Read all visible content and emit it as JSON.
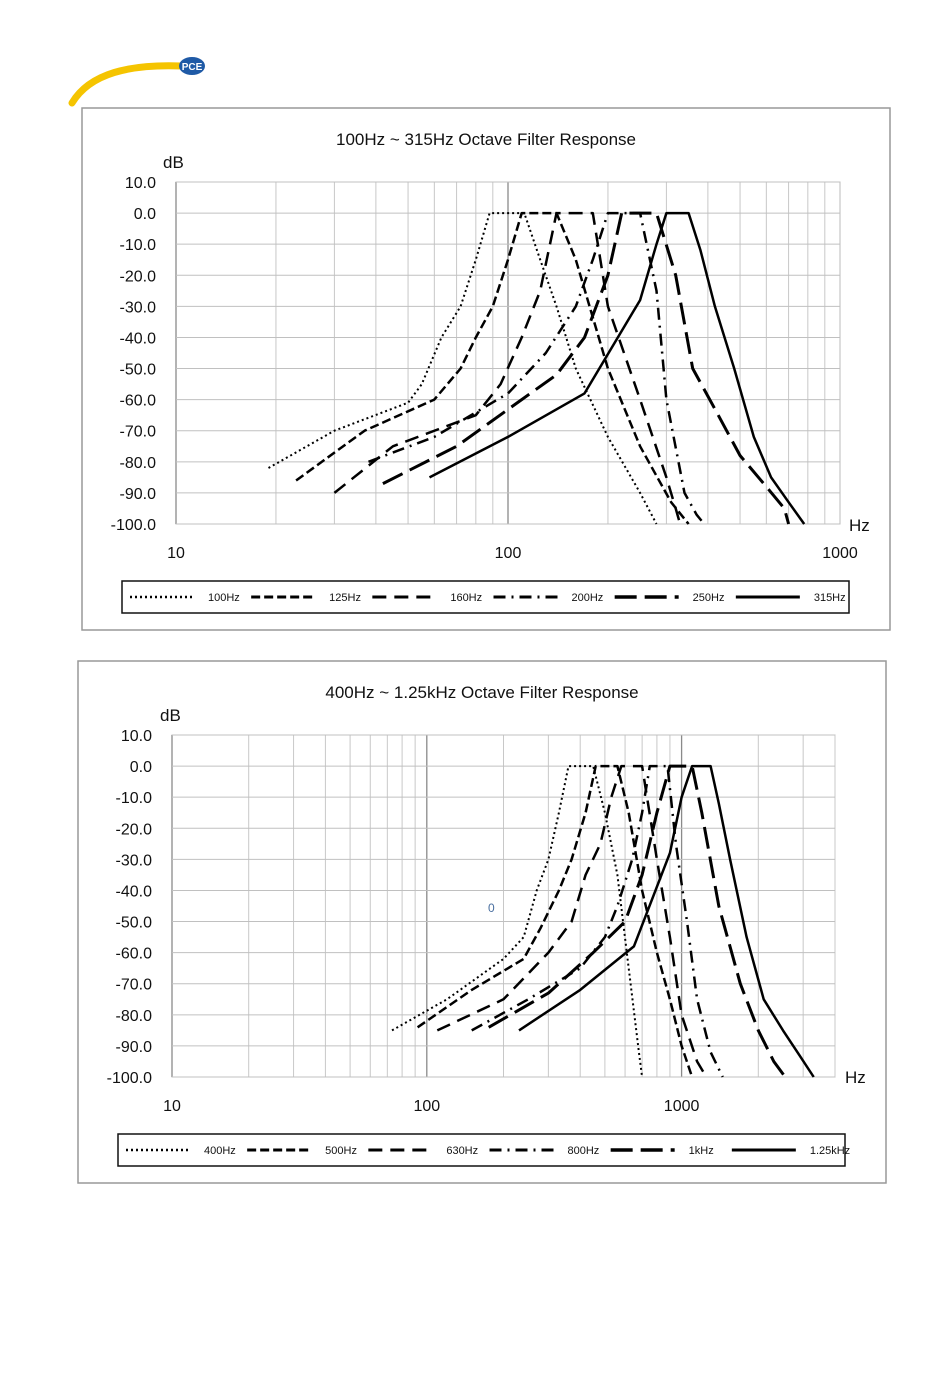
{
  "logo": {
    "text": "PCE",
    "accent": "#f5c400",
    "badge": "#1f5aa6"
  },
  "chart_data": [
    {
      "type": "line",
      "title": "100Hz ~ 315Hz Octave Filter Response",
      "ylabel": "dB",
      "xlabel": "Hz",
      "xscale": "log",
      "xlim": [
        10,
        1000
      ],
      "ylim": [
        -100,
        10
      ],
      "yticks": [
        "10.0",
        "0.0",
        "-10.0",
        "-20.0",
        "-30.0",
        "-40.0",
        "-50.0",
        "-60.0",
        "-70.0",
        "-80.0",
        "-90.0",
        "-100.0"
      ],
      "xticks": [
        "10",
        "100",
        "1000"
      ],
      "grid": true,
      "legend": "bottom",
      "series": [
        {
          "name": "100Hz",
          "dash": "dotted",
          "x": [
            19,
            30,
            50,
            55,
            63,
            72,
            80,
            88,
            100,
            112,
            125,
            140,
            160,
            200,
            250,
            280
          ],
          "y": [
            -82,
            -70,
            -61,
            -55,
            -40,
            -30,
            -15,
            0,
            0,
            0,
            -15,
            -30,
            -50,
            -72,
            -90,
            -100
          ]
        },
        {
          "name": "125Hz",
          "dash": "dash-short",
          "x": [
            23,
            37,
            60,
            72,
            80,
            90,
            100,
            110,
            125,
            140,
            160,
            200,
            250,
            310,
            350
          ],
          "y": [
            -86,
            -70,
            -60,
            -50,
            -40,
            -30,
            -15,
            0,
            0,
            0,
            -15,
            -50,
            -75,
            -93,
            -100
          ]
        },
        {
          "name": "160Hz",
          "dash": "dash-long",
          "x": [
            30,
            45,
            80,
            95,
            110,
            125,
            140,
            160,
            180,
            200,
            250,
            300,
            320,
            330
          ],
          "y": [
            -90,
            -75,
            -65,
            -55,
            -40,
            -25,
            0,
            0,
            0,
            -30,
            -60,
            -85,
            -95,
            -100
          ]
        },
        {
          "name": "200Hz",
          "dash": "dash-dot",
          "x": [
            38,
            60,
            100,
            130,
            160,
            180,
            200,
            220,
            250,
            280,
            300,
            340,
            370,
            390
          ],
          "y": [
            -80,
            -72,
            -58,
            -45,
            -30,
            -15,
            0,
            0,
            0,
            -25,
            -60,
            -90,
            -97,
            -100
          ]
        },
        {
          "name": "250Hz",
          "dash": "dash-xlong",
          "x": [
            42,
            70,
            110,
            140,
            170,
            200,
            220,
            250,
            280,
            320,
            360,
            420,
            500,
            600,
            680,
            700
          ],
          "y": [
            -87,
            -75,
            -60,
            -52,
            -40,
            -20,
            0,
            0,
            0,
            -20,
            -50,
            -63,
            -78,
            -88,
            -95,
            -100
          ]
        },
        {
          "name": "315Hz",
          "dash": "solid",
          "x": [
            58,
            100,
            170,
            250,
            280,
            300,
            320,
            350,
            380,
            420,
            480,
            550,
            620,
            700,
            780
          ],
          "y": [
            -85,
            -72,
            -58,
            -28,
            -10,
            0,
            0,
            0,
            -12,
            -30,
            -50,
            -72,
            -85,
            -93,
            -100
          ]
        }
      ]
    },
    {
      "type": "line",
      "title": "400Hz ~ 1.25kHz Octave Filter Response",
      "ylabel": "dB",
      "xlabel": "Hz",
      "xscale": "log",
      "xlim": [
        10,
        4000
      ],
      "ylim": [
        -100,
        10
      ],
      "yticks": [
        "10.0",
        "0.0",
        "-10.0",
        "-20.0",
        "-30.0",
        "-40.0",
        "-50.0",
        "-60.0",
        "-70.0",
        "-80.0",
        "-90.0",
        "-100.0"
      ],
      "xticks": [
        "10",
        "100",
        "1000"
      ],
      "grid": true,
      "legend": "bottom",
      "annotation": "0",
      "series": [
        {
          "name": "400Hz",
          "dash": "dotted",
          "x": [
            73,
            120,
            200,
            240,
            270,
            300,
            330,
            360,
            400,
            450,
            500,
            560,
            620,
            680,
            700
          ],
          "y": [
            -85,
            -75,
            -62,
            -55,
            -40,
            -30,
            -15,
            0,
            0,
            0,
            -15,
            -35,
            -65,
            -92,
            -100
          ]
        },
        {
          "name": "500Hz",
          "dash": "dash-short",
          "x": [
            92,
            150,
            240,
            280,
            330,
            370,
            420,
            460,
            500,
            560,
            620,
            700,
            800,
            900,
            1000,
            1100
          ],
          "y": [
            -84,
            -72,
            -62,
            -52,
            -40,
            -30,
            -15,
            0,
            0,
            0,
            -15,
            -40,
            -60,
            -75,
            -90,
            -100
          ]
        },
        {
          "name": "630Hz",
          "dash": "dash-long",
          "x": [
            110,
            200,
            300,
            370,
            420,
            480,
            530,
            580,
            630,
            700,
            800,
            900,
            1000,
            1150,
            1250
          ],
          "y": [
            -85,
            -75,
            -60,
            -50,
            -35,
            -25,
            -10,
            0,
            0,
            0,
            -30,
            -55,
            -80,
            -95,
            -100
          ]
        },
        {
          "name": "800Hz",
          "dash": "dash-dot",
          "x": [
            150,
            250,
            400,
            500,
            560,
            640,
            700,
            750,
            800,
            880,
            950,
            1050,
            1150,
            1300,
            1450
          ],
          "y": [
            -85,
            -75,
            -65,
            -55,
            -45,
            -30,
            -15,
            0,
            0,
            0,
            -25,
            -50,
            -75,
            -92,
            -100
          ]
        },
        {
          "name": "1kHz",
          "dash": "dash-xlong",
          "x": [
            175,
            300,
            450,
            600,
            700,
            800,
            900,
            1000,
            1100,
            1200,
            1400,
            1700,
            2000,
            2300,
            2550
          ],
          "y": [
            -84,
            -73,
            -60,
            -50,
            -35,
            -15,
            0,
            0,
            0,
            -15,
            -45,
            -70,
            -85,
            -95,
            -100
          ]
        },
        {
          "name": "1.25kHz",
          "dash": "solid",
          "x": [
            230,
            400,
            650,
            900,
            1000,
            1100,
            1200,
            1300,
            1400,
            1550,
            1800,
            2100,
            2500,
            2900,
            3300
          ],
          "y": [
            -85,
            -72,
            -58,
            -28,
            -10,
            0,
            0,
            0,
            -12,
            -30,
            -55,
            -75,
            -85,
            -93,
            -100
          ]
        }
      ]
    }
  ]
}
